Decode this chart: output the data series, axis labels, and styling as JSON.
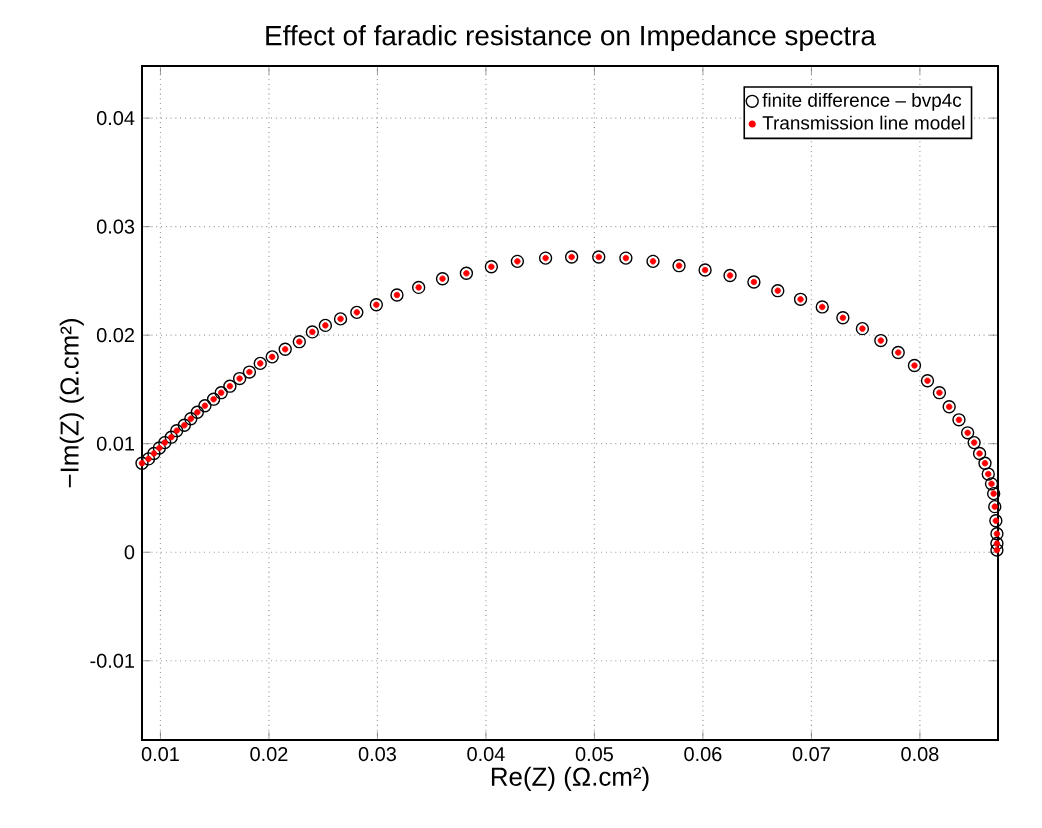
{
  "chart_data": {
    "type": "scatter",
    "title": "Effect of faradic resistance on Impedance spectra",
    "xlabel": "Re(Z) (Ω.cm²)",
    "ylabel": "−Im(Z) (Ω.cm²)",
    "xlim": [
      0.0083,
      0.0872
    ],
    "ylim": [
      -0.0173,
      0.0448
    ],
    "xticks": [
      0.01,
      0.02,
      0.03,
      0.04,
      0.05,
      0.06,
      0.07,
      0.08
    ],
    "yticks": [
      -0.01,
      0,
      0.01,
      0.02,
      0.03,
      0.04
    ],
    "grid": true,
    "legend": "top right",
    "marker": "circle",
    "x": [
      0.0083,
      0.0089,
      0.0094,
      0.0099,
      0.0104,
      0.011,
      0.0115,
      0.0122,
      0.0128,
      0.0134,
      0.0141,
      0.0149,
      0.0156,
      0.0164,
      0.0173,
      0.0182,
      0.0192,
      0.0203,
      0.0215,
      0.0228,
      0.024,
      0.0252,
      0.0266,
      0.0281,
      0.0299,
      0.0318,
      0.0338,
      0.036,
      0.0382,
      0.0405,
      0.0429,
      0.0455,
      0.0479,
      0.0504,
      0.0529,
      0.0554,
      0.0578,
      0.0602,
      0.0625,
      0.0647,
      0.0669,
      0.069,
      0.071,
      0.0729,
      0.0747,
      0.0764,
      0.078,
      0.0795,
      0.0807,
      0.0818,
      0.0827,
      0.0836,
      0.0844,
      0.085,
      0.0855,
      0.086,
      0.0863,
      0.0866,
      0.0868,
      0.0869,
      0.087,
      0.0871,
      0.0871,
      0.0871
    ],
    "series": [
      {
        "name": "finite difference – bvp4c",
        "color": "#000000",
        "values": [
          0.0082,
          0.0086,
          0.0091,
          0.0096,
          0.0101,
          0.0106,
          0.0112,
          0.0117,
          0.0123,
          0.0129,
          0.0135,
          0.0141,
          0.0147,
          0.0153,
          0.016,
          0.0166,
          0.0174,
          0.018,
          0.0187,
          0.0194,
          0.0203,
          0.0209,
          0.0215,
          0.0221,
          0.0228,
          0.0237,
          0.0244,
          0.0252,
          0.0257,
          0.0263,
          0.0268,
          0.0271,
          0.0272,
          0.0272,
          0.0271,
          0.0268,
          0.0264,
          0.026,
          0.0255,
          0.0249,
          0.0241,
          0.0233,
          0.0226,
          0.0216,
          0.0206,
          0.0195,
          0.0184,
          0.0172,
          0.0158,
          0.0147,
          0.0134,
          0.0122,
          0.011,
          0.0101,
          0.0091,
          0.0082,
          0.0072,
          0.0063,
          0.0054,
          0.0042,
          0.0029,
          0.0017,
          0.0008,
          0.0002
        ]
      },
      {
        "name": "Transmission line model",
        "color": "#ff0000",
        "values": [
          0.0082,
          0.0086,
          0.0091,
          0.0096,
          0.0101,
          0.0106,
          0.0112,
          0.0117,
          0.0123,
          0.0129,
          0.0135,
          0.0141,
          0.0147,
          0.0153,
          0.016,
          0.0166,
          0.0174,
          0.018,
          0.0187,
          0.0194,
          0.0203,
          0.0209,
          0.0215,
          0.0221,
          0.0228,
          0.0237,
          0.0244,
          0.0252,
          0.0257,
          0.0263,
          0.0268,
          0.0271,
          0.0272,
          0.0272,
          0.0271,
          0.0268,
          0.0264,
          0.026,
          0.0255,
          0.0249,
          0.0241,
          0.0233,
          0.0226,
          0.0216,
          0.0206,
          0.0195,
          0.0184,
          0.0172,
          0.0158,
          0.0147,
          0.0134,
          0.0122,
          0.011,
          0.0101,
          0.0091,
          0.0082,
          0.0072,
          0.0063,
          0.0054,
          0.0042,
          0.0029,
          0.0017,
          0.0008,
          0.0002
        ]
      }
    ]
  }
}
